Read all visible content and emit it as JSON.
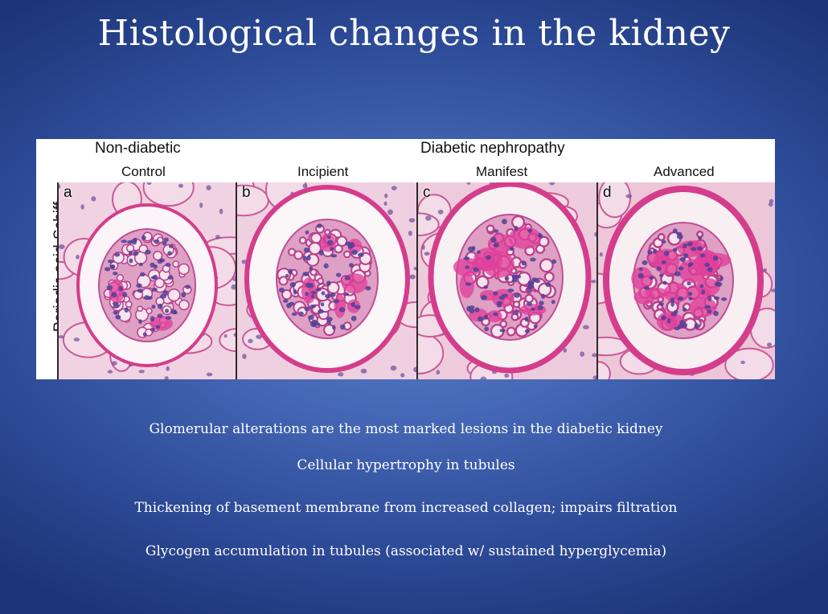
{
  "slide": {
    "title": "Histological changes in the kidney"
  },
  "figure": {
    "group_non_diabetic": "Non-diabetic",
    "group_diabetic": "Diabetic nephropathy",
    "stain": "Periodic acid-Schiff",
    "panels": [
      {
        "letter": "a",
        "stage": "Control"
      },
      {
        "letter": "b",
        "stage": "Incipient"
      },
      {
        "letter": "c",
        "stage": "Manifest"
      },
      {
        "letter": "d",
        "stage": "Advanced"
      }
    ]
  },
  "bullets": [
    "Glomerular alterations are the most marked lesions in the diabetic kidney",
    "Cellular hypertrophy in tubules",
    "Thickening of basement membrane from increased collagen; impairs filtration",
    "Glycogen accumulation in tubules (associated w/ sustained hyperglycemia)"
  ],
  "colors": {
    "background_center": "#5b7fc8",
    "background_edge": "#1d3578",
    "text": "#ffffff",
    "pas_stain": "#e0409a"
  }
}
